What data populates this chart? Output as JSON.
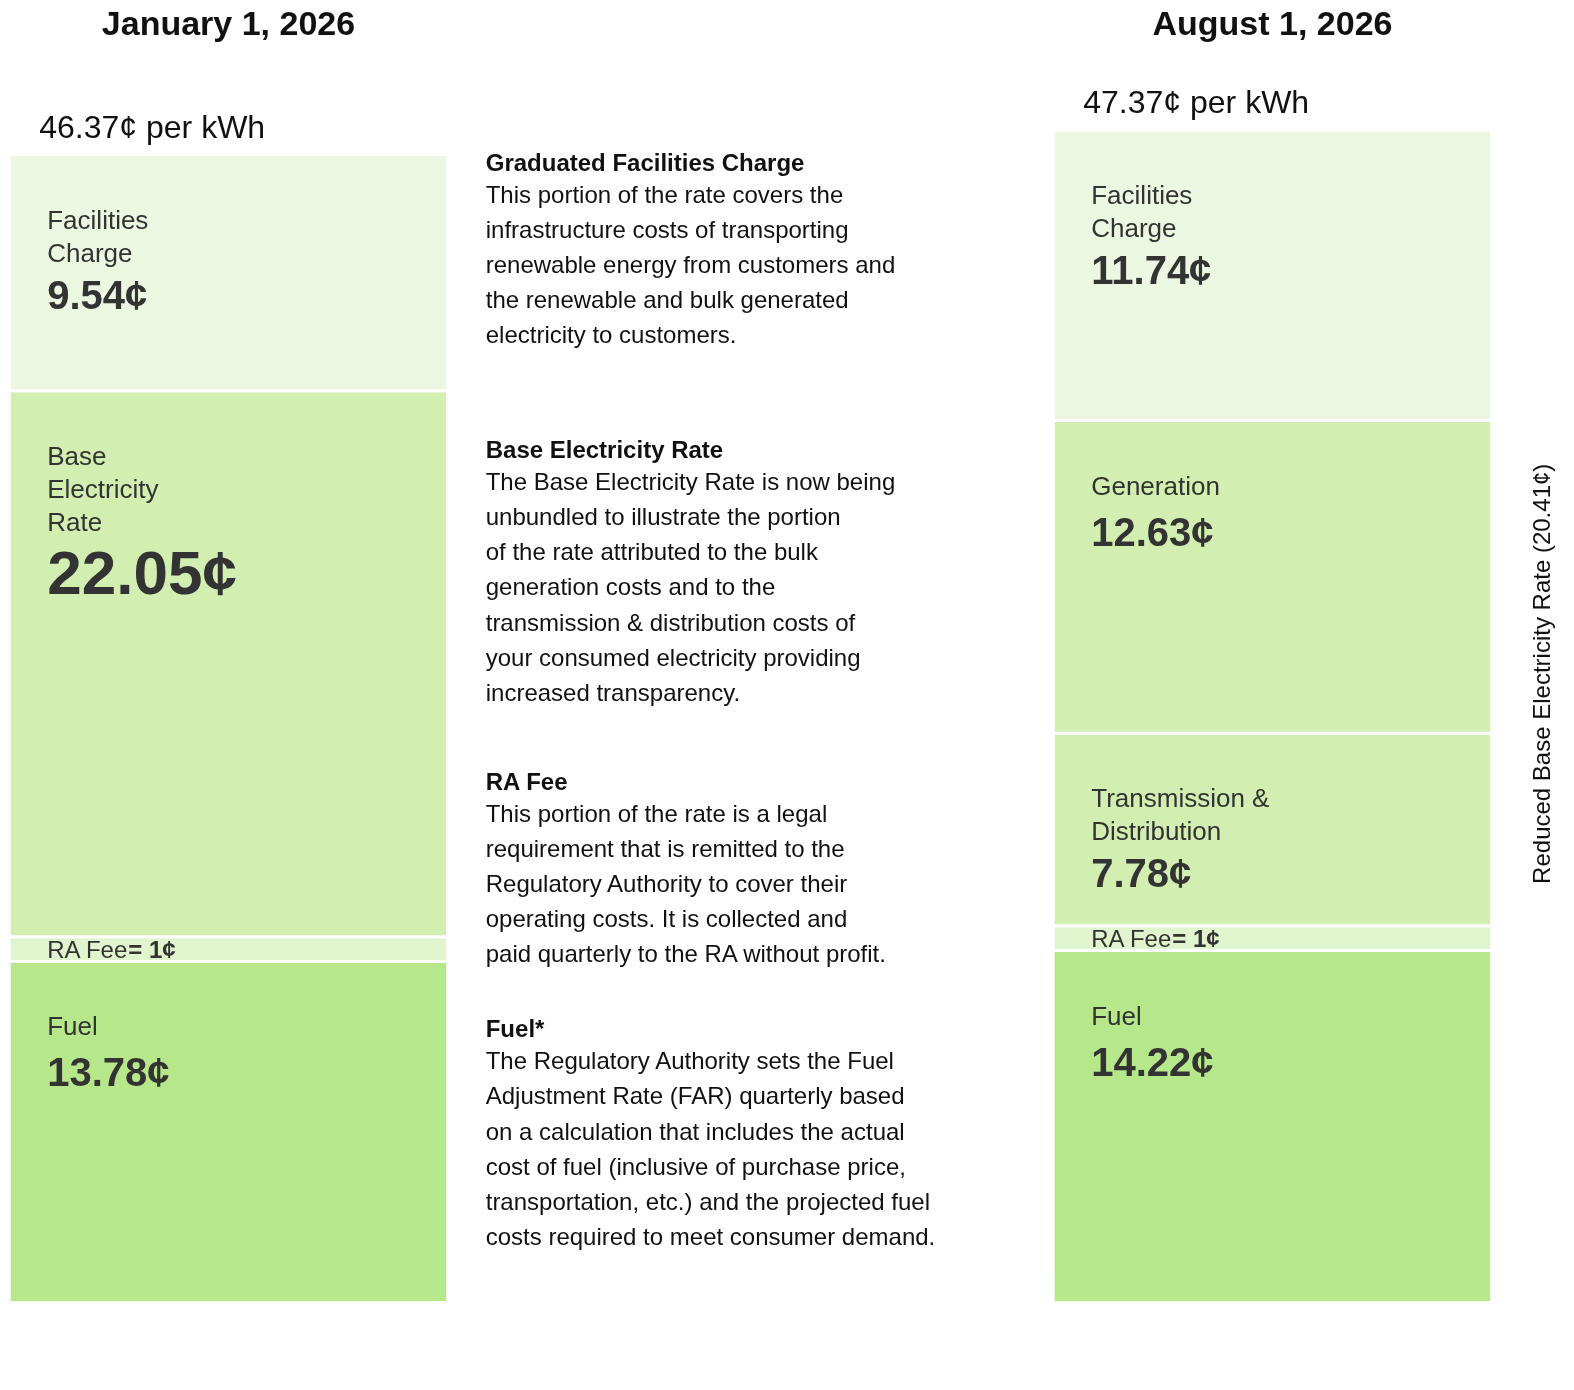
{
  "chart_data": {
    "type": "bar",
    "stacked": true,
    "categories": [
      "January 1, 2026",
      "August 1, 2026"
    ],
    "totals": [
      "46.37¢ per kWh",
      "47.37¢ per kWh"
    ],
    "tick_labels": "x",
    "legend": false,
    "grid": false,
    "series": [
      {
        "name": "Fuel",
        "color": "#b6e78b",
        "values": [
          13.78,
          14.22
        ],
        "value_labels": [
          "13.78¢",
          "14.22¢"
        ]
      },
      {
        "name": "RA Fee",
        "color": "#e0f4cd",
        "values": [
          1,
          1
        ],
        "value_labels": [
          "= 1¢",
          "= 1¢"
        ]
      },
      {
        "name": "Base Electricity Rate",
        "color": "#d2eeb1",
        "values": [
          22.05,
          null
        ],
        "value_labels": [
          "22.05¢",
          null
        ]
      },
      {
        "name": "Transmission & Distribution",
        "color": "#d2eeb1",
        "values": [
          null,
          7.78
        ],
        "value_labels": [
          null,
          "7.78¢"
        ]
      },
      {
        "name": "Generation",
        "color": "#d2eeb1",
        "values": [
          null,
          12.63
        ],
        "value_labels": [
          null,
          "12.63¢"
        ]
      },
      {
        "name": "Facilities Charge",
        "color": "#ebf7e1",
        "values": [
          9.54,
          11.74
        ],
        "value_labels": [
          "9.54¢",
          "11.74¢"
        ]
      }
    ],
    "annotations": [
      "Graduated Facilities Charge\nThis portion of the rate covers the\ninfrastructure costs of transporting\nrenewable energy from customers and\nthe renewable and bulk generated\nelectricity to customers.",
      "Base Electricity Rate\nThe Base Electricity Rate is now being\nunbundled to illustrate the portion\nof the rate attributed to the bulk\ngeneration costs and to the\ntransmission & distribution costs of\nyour consumed electricity providing\nincreased transparency.",
      "RA Fee\nThis portion of the rate is a legal\nrequirement that is remitted to the\nRegulatory Authority to cover their\noperating costs. It is collected and\npaid quarterly to the RA without profit.",
      "Fuel*\nThe Regulatory Authority sets the Fuel\nAdjustment Rate (FAR) quarterly based\non a calculation that includes the actual\ncost of fuel (inclusive of purchase price,\ntransportation, etc.) and the projected fuel\ncosts required to meet consumer demand.",
      "Reduced Base Electricity Rate (20.41¢)"
    ]
  }
}
